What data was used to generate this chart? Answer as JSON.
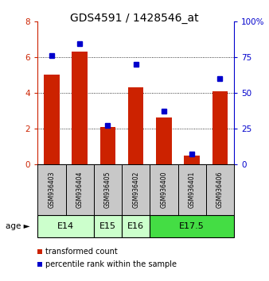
{
  "title": "GDS4591 / 1428546_at",
  "samples": [
    "GSM936403",
    "GSM936404",
    "GSM936405",
    "GSM936402",
    "GSM936400",
    "GSM936401",
    "GSM936406"
  ],
  "transformed_count": [
    5.0,
    6.3,
    2.1,
    4.3,
    2.6,
    0.5,
    4.1
  ],
  "percentile_rank": [
    76,
    84,
    27,
    70,
    37,
    7,
    60
  ],
  "bar_color": "#cc2200",
  "dot_color": "#0000cc",
  "ylim_left": [
    0,
    8
  ],
  "ylim_right": [
    0,
    100
  ],
  "yticks_left": [
    0,
    2,
    4,
    6,
    8
  ],
  "yticks_right": [
    0,
    25,
    50,
    75,
    100
  ],
  "age_groups": [
    {
      "label": "E14",
      "span": [
        0,
        2
      ],
      "color": "#ccffcc"
    },
    {
      "label": "E15",
      "span": [
        2,
        3
      ],
      "color": "#ccffcc"
    },
    {
      "label": "E16",
      "span": [
        3,
        4
      ],
      "color": "#ccffcc"
    },
    {
      "label": "E17.5",
      "span": [
        4,
        7
      ],
      "color": "#44dd44"
    }
  ],
  "legend_items": [
    {
      "label": "transformed count",
      "color": "#cc2200"
    },
    {
      "label": "percentile rank within the sample",
      "color": "#0000cc"
    }
  ],
  "sample_bg_color": "#c8c8c8",
  "bar_width": 0.55,
  "title_fontsize": 10,
  "label_fontsize": 6,
  "age_fontsize": 8,
  "legend_fontsize": 7,
  "ytick_fontsize": 7.5
}
